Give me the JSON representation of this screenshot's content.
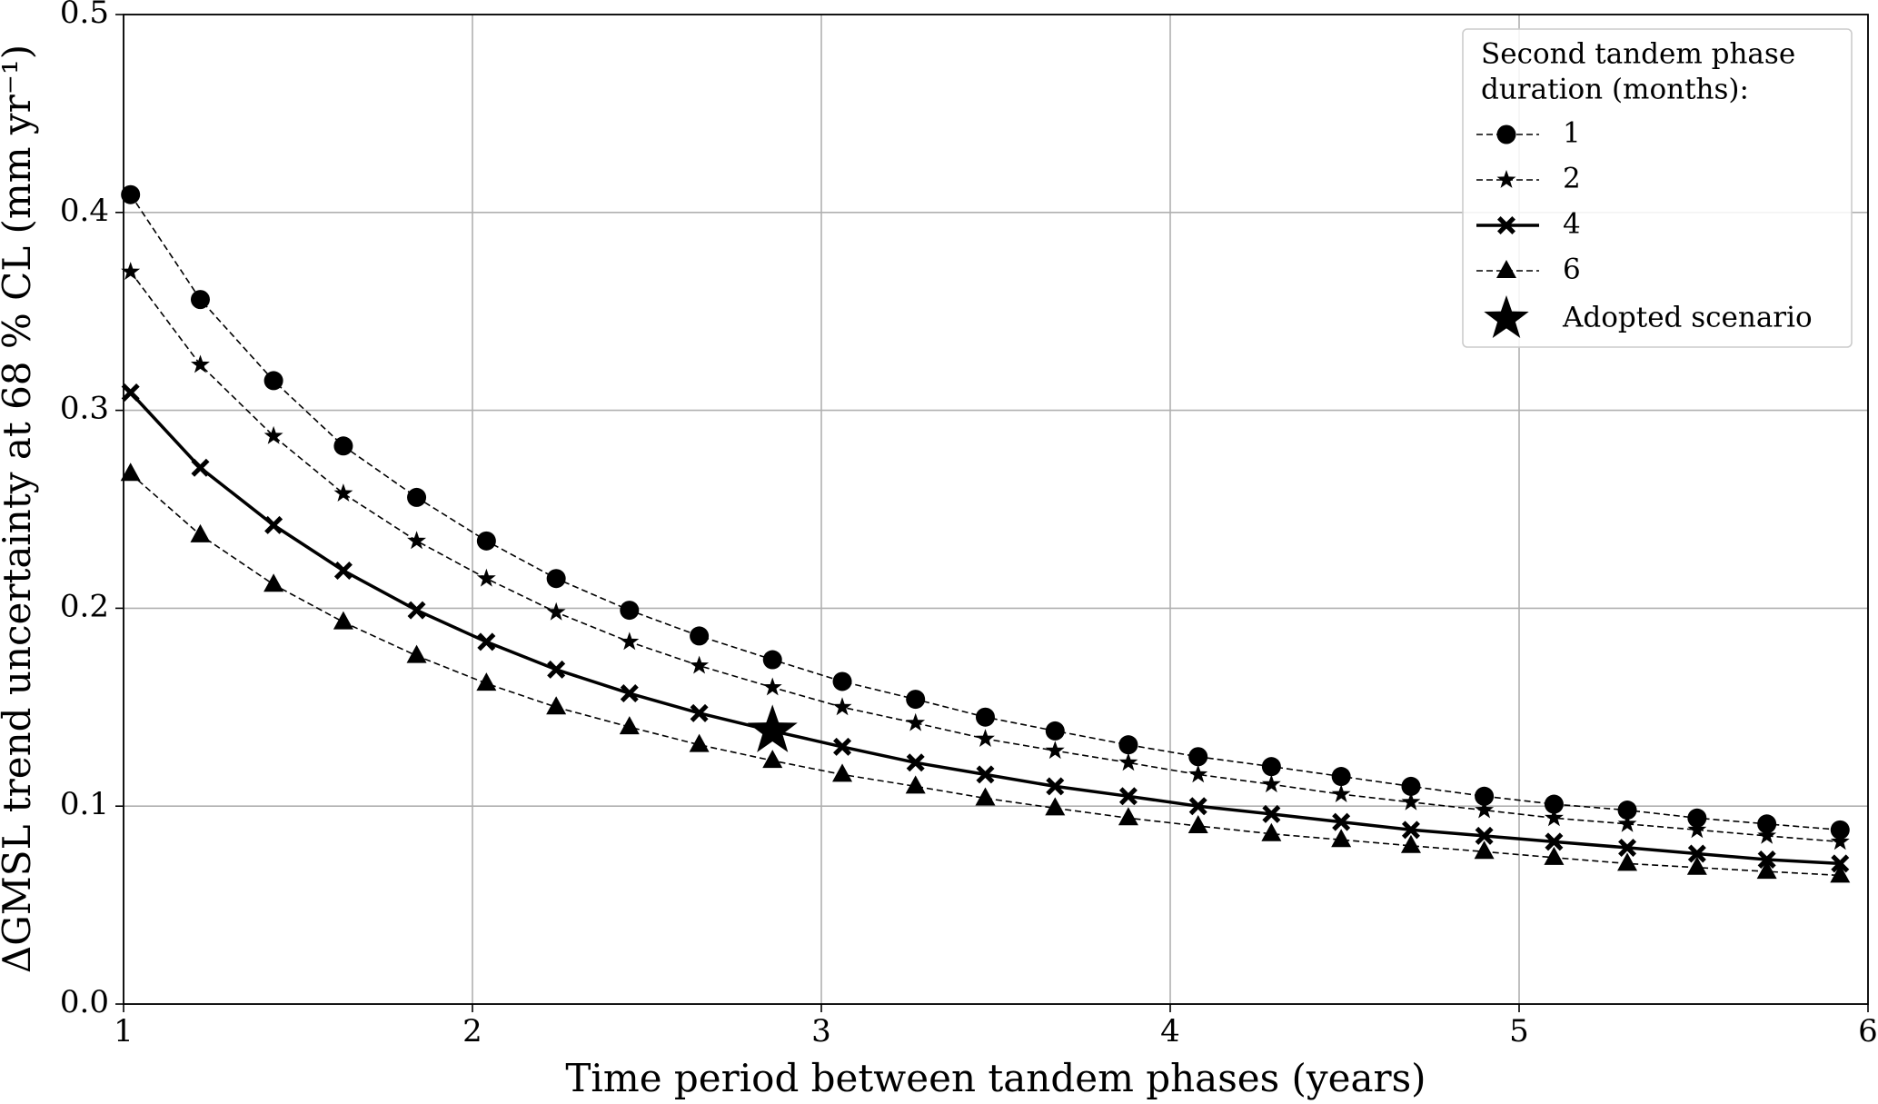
{
  "chart_data": {
    "type": "line",
    "x_label": "Time period between tandem phases (years)",
    "y_label": "ΔGMSL trend uncertainty at 68 % CL (mm yr⁻¹)",
    "xlim": [
      1,
      6
    ],
    "ylim": [
      0,
      0.5
    ],
    "xticks": [
      1,
      2,
      3,
      4,
      5,
      6
    ],
    "yticks": [
      {
        "value": 0,
        "label": "0.0"
      },
      0.1,
      0.2,
      0.3,
      0.4,
      0.5
    ],
    "grid": true,
    "legend_position": "upper right",
    "legend_title": [
      "Second tandem phase",
      "duration (months):"
    ],
    "x": [
      1.02,
      1.22,
      1.43,
      1.63,
      1.84,
      2.04,
      2.24,
      2.45,
      2.65,
      2.86,
      3.06,
      3.27,
      3.47,
      3.67,
      3.88,
      4.08,
      4.29,
      4.49,
      4.69,
      4.9,
      5.1,
      5.31,
      5.51,
      5.71,
      5.92
    ],
    "series": [
      {
        "name": "1",
        "color": "#000000",
        "marker": "circle",
        "linestyle": "dashed",
        "values": [
          0.409,
          0.356,
          0.315,
          0.282,
          0.256,
          0.234,
          0.215,
          0.199,
          0.186,
          0.174,
          0.163,
          0.154,
          0.145,
          0.138,
          0.131,
          0.125,
          0.12,
          0.115,
          0.11,
          0.105,
          0.101,
          0.098,
          0.094,
          0.091,
          0.088
        ]
      },
      {
        "name": "2",
        "color": "#000000",
        "marker": "star",
        "linestyle": "dashed",
        "values": [
          0.37,
          0.323,
          0.287,
          0.258,
          0.234,
          0.215,
          0.198,
          0.183,
          0.171,
          0.16,
          0.15,
          0.142,
          0.134,
          0.128,
          0.122,
          0.116,
          0.111,
          0.106,
          0.102,
          0.098,
          0.094,
          0.091,
          0.088,
          0.085,
          0.082
        ]
      },
      {
        "name": "4",
        "color": "#000000",
        "marker": "x",
        "linestyle": "solid",
        "values": [
          0.309,
          0.271,
          0.242,
          0.219,
          0.199,
          0.183,
          0.169,
          0.157,
          0.147,
          0.138,
          0.13,
          0.122,
          0.116,
          0.11,
          0.105,
          0.1,
          0.096,
          0.092,
          0.088,
          0.085,
          0.082,
          0.079,
          0.076,
          0.073,
          0.071
        ]
      },
      {
        "name": "6",
        "color": "#000000",
        "marker": "triangle",
        "linestyle": "dashed",
        "values": [
          0.268,
          0.237,
          0.212,
          0.193,
          0.176,
          0.162,
          0.15,
          0.14,
          0.131,
          0.123,
          0.116,
          0.11,
          0.104,
          0.099,
          0.094,
          0.09,
          0.086,
          0.083,
          0.08,
          0.077,
          0.074,
          0.071,
          0.069,
          0.067,
          0.065
        ]
      }
    ],
    "adopted": {
      "name": "Adopted scenario",
      "x": 2.86,
      "y": 0.138,
      "color": "#000000"
    }
  }
}
